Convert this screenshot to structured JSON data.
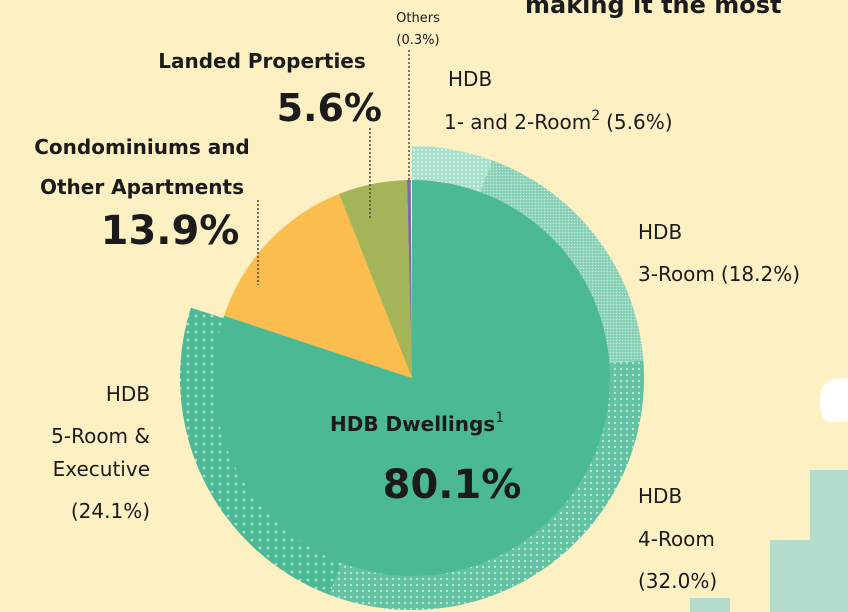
{
  "chart_data": {
    "type": "pie",
    "title": "making it the most",
    "inner": {
      "categories": [
        [
          "HDB Dwellings"
        ],
        [
          "Condominiums and",
          "Other Apartments"
        ],
        [
          "Landed Properties"
        ],
        [
          "Others"
        ]
      ],
      "values": [
        80.1,
        13.9,
        5.6,
        0.3
      ],
      "value_labels": [
        "80.1%",
        "13.9%",
        "5.6%",
        "(0.3%)"
      ],
      "colors": [
        "#4cb995",
        "#fbbd4d",
        "#a4b459",
        "#7a6aa6"
      ],
      "note": "1"
    },
    "ring": {
      "categories": [
        [
          "HDB",
          "1- and 2-Room"
        ],
        [
          "HDB",
          "3-Room"
        ],
        [
          "HDB",
          "4-Room"
        ],
        [
          "HDB",
          "5-Room &",
          "Executive"
        ]
      ],
      "values": [
        5.6,
        18.2,
        32.0,
        24.1
      ],
      "value_labels": [
        "(5.6%)",
        "(18.2%)",
        "(32.0%)",
        "(24.1%)"
      ],
      "colors": [
        "#a6dfcb",
        "#86d0b6",
        "#62c2a2",
        "#4cb995"
      ],
      "note": "2"
    }
  }
}
